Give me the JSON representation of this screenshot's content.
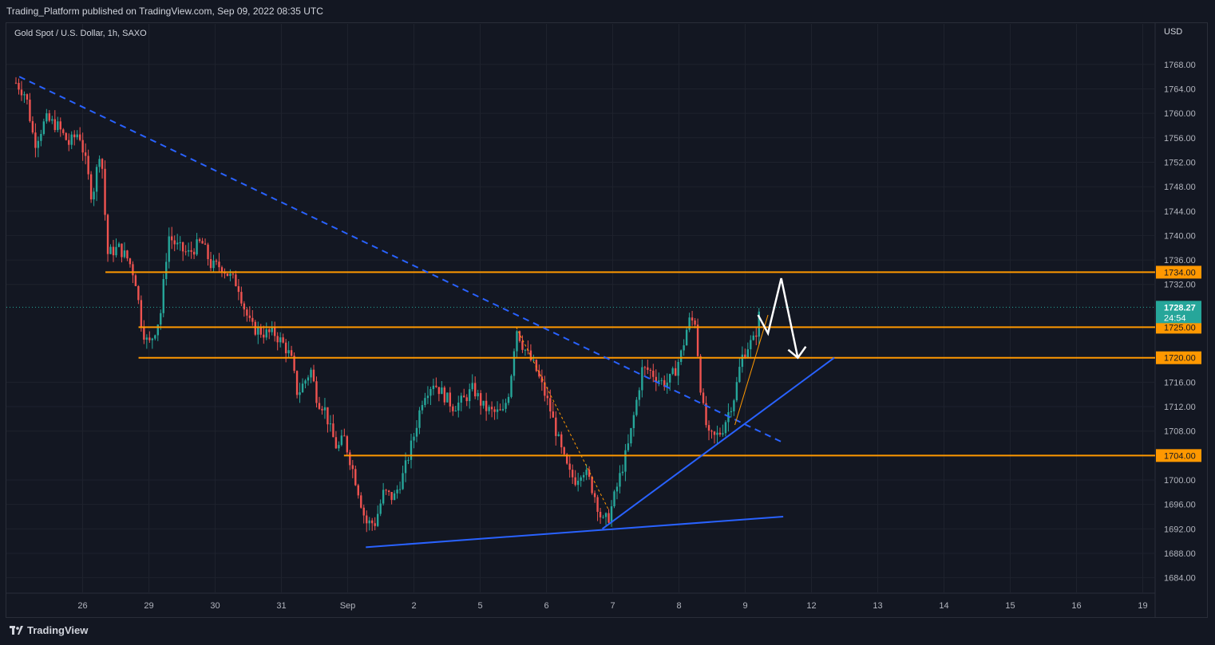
{
  "header": {
    "published_text": "Trading_Platform published on TradingView.com, Sep 09, 2022 08:35 UTC"
  },
  "symbol_title": "Gold Spot / U.S. Dollar, 1h, SAXO",
  "currency": "USD",
  "footer": {
    "brand": "TradingView"
  },
  "colors": {
    "background": "#131722",
    "up": "#26a69a",
    "down": "#ef5350",
    "level": "#ff9800",
    "trend": "#2962ff",
    "price_tag": "#26a69a"
  },
  "chart_data": {
    "type": "candlestick",
    "instrument": "Gold Spot / U.S. Dollar",
    "interval": "1h",
    "y_axis": {
      "min": 1681,
      "max": 1773,
      "ticks": [
        "1768.00",
        "1764.00",
        "1760.00",
        "1756.00",
        "1752.00",
        "1748.00",
        "1744.00",
        "1740.00",
        "1736.00",
        "1732.00",
        "1716.00",
        "1712.00",
        "1708.00",
        "1700.00",
        "1696.00",
        "1692.00",
        "1688.00",
        "1684.00"
      ]
    },
    "x_axis": {
      "labels": [
        {
          "label": "26",
          "t": 0.5
        },
        {
          "label": "29",
          "t": 1.5
        },
        {
          "label": "30",
          "t": 2.5
        },
        {
          "label": "31",
          "t": 3.5
        },
        {
          "label": "Sep",
          "t": 4.5
        },
        {
          "label": "2",
          "t": 5.5
        },
        {
          "label": "5",
          "t": 6.5
        },
        {
          "label": "6",
          "t": 7.5
        },
        {
          "label": "7",
          "t": 8.5
        },
        {
          "label": "8",
          "t": 9.5
        },
        {
          "label": "9",
          "t": 10.5
        },
        {
          "label": "12",
          "t": 11.5
        },
        {
          "label": "13",
          "t": 12.5
        },
        {
          "label": "14",
          "t": 13.5
        },
        {
          "label": "15",
          "t": 14.5
        },
        {
          "label": "16",
          "t": 15.5
        },
        {
          "label": "19",
          "t": 16.5
        }
      ]
    },
    "price_path": [
      [
        0.0,
        1765
      ],
      [
        0.15,
        1763
      ],
      [
        0.28,
        1755
      ],
      [
        0.45,
        1759
      ],
      [
        0.62,
        1758
      ],
      [
        0.8,
        1755
      ],
      [
        0.95,
        1757
      ],
      [
        1.05,
        1752
      ],
      [
        1.15,
        1746
      ],
      [
        1.28,
        1755
      ],
      [
        1.38,
        1737
      ],
      [
        1.55,
        1738
      ],
      [
        1.7,
        1736
      ],
      [
        1.8,
        1733
      ],
      [
        1.9,
        1725
      ],
      [
        2.0,
        1722
      ],
      [
        2.08,
        1724
      ],
      [
        2.18,
        1727
      ],
      [
        2.3,
        1740
      ],
      [
        2.45,
        1738
      ],
      [
        2.6,
        1737
      ],
      [
        2.8,
        1739
      ],
      [
        2.95,
        1735
      ],
      [
        3.1,
        1735
      ],
      [
        3.25,
        1733
      ],
      [
        3.35,
        1732
      ],
      [
        3.45,
        1728
      ],
      [
        3.55,
        1725
      ],
      [
        3.75,
        1724
      ],
      [
        3.9,
        1724
      ],
      [
        4.05,
        1722
      ],
      [
        4.15,
        1720
      ],
      [
        4.25,
        1714
      ],
      [
        4.35,
        1716
      ],
      [
        4.45,
        1718
      ],
      [
        4.55,
        1713
      ],
      [
        4.65,
        1712
      ],
      [
        4.75,
        1708
      ],
      [
        4.85,
        1705
      ],
      [
        4.95,
        1707
      ],
      [
        5.05,
        1703
      ],
      [
        5.15,
        1699
      ],
      [
        5.28,
        1693
      ],
      [
        5.42,
        1693
      ],
      [
        5.55,
        1698
      ],
      [
        5.7,
        1697
      ],
      [
        5.85,
        1701
      ],
      [
        6.0,
        1707
      ],
      [
        6.15,
        1714
      ],
      [
        6.3,
        1716
      ],
      [
        6.45,
        1714
      ],
      [
        6.6,
        1712
      ],
      [
        6.75,
        1713
      ],
      [
        6.9,
        1715
      ],
      [
        7.05,
        1712
      ],
      [
        7.2,
        1711
      ],
      [
        7.35,
        1711
      ],
      [
        7.45,
        1715
      ],
      [
        7.55,
        1725
      ],
      [
        7.65,
        1722
      ],
      [
        7.75,
        1720
      ],
      [
        7.85,
        1718
      ],
      [
        7.95,
        1715
      ],
      [
        8.05,
        1712
      ],
      [
        8.15,
        1708
      ],
      [
        8.25,
        1704
      ],
      [
        8.35,
        1701
      ],
      [
        8.45,
        1700
      ],
      [
        8.55,
        1702
      ],
      [
        8.65,
        1700
      ],
      [
        8.75,
        1697
      ],
      [
        8.85,
        1693
      ],
      [
        8.95,
        1694
      ],
      [
        9.05,
        1698
      ],
      [
        9.15,
        1702
      ],
      [
        9.25,
        1706
      ],
      [
        9.35,
        1712
      ],
      [
        9.45,
        1718
      ],
      [
        9.55,
        1718
      ],
      [
        9.65,
        1717
      ],
      [
        9.75,
        1716
      ],
      [
        9.85,
        1716
      ],
      [
        9.95,
        1718
      ],
      [
        10.05,
        1721
      ],
      [
        10.15,
        1726
      ],
      [
        10.25,
        1726
      ],
      [
        10.35,
        1713
      ],
      [
        10.45,
        1707
      ],
      [
        10.55,
        1707
      ],
      [
        10.65,
        1708
      ],
      [
        10.75,
        1711
      ],
      [
        10.85,
        1714
      ],
      [
        10.95,
        1720
      ],
      [
        11.05,
        1722
      ],
      [
        11.15,
        1723
      ],
      [
        11.25,
        1729
      ]
    ],
    "last_price": 1728.27,
    "last_price_label": "1728.27",
    "countdown": "24:54",
    "horizontal_levels": [
      {
        "price": 1734,
        "label": "1734.00",
        "t_start": 1.35
      },
      {
        "price": 1725,
        "label": "1725.00",
        "t_start": 1.85
      },
      {
        "price": 1720,
        "label": "1720.00",
        "t_start": 1.85
      },
      {
        "price": 1704,
        "label": "1704.00",
        "t_start": 4.95
      }
    ],
    "trendlines": [
      {
        "color": "#2962ff",
        "style": "dashed",
        "points": [
          [
            0.05,
            1766
          ],
          [
            11.6,
            1706
          ]
        ]
      },
      {
        "color": "#2962ff",
        "style": "solid",
        "points": [
          [
            5.28,
            1689
          ],
          [
            11.58,
            1694
          ]
        ]
      },
      {
        "color": "#2962ff",
        "style": "solid",
        "points": [
          [
            8.85,
            1692
          ],
          [
            12.35,
            1720
          ]
        ]
      },
      {
        "color": "#ff9800",
        "style": "dashed",
        "points": [
          [
            7.55,
            1725
          ],
          [
            8.95,
            1695
          ]
        ]
      },
      {
        "color": "#ff9800",
        "style": "solid",
        "points": [
          [
            10.85,
            1709
          ],
          [
            11.35,
            1727
          ]
        ]
      }
    ],
    "projection_arrow": {
      "color": "#ffffff",
      "points": [
        [
          11.2,
          1727
        ],
        [
          11.35,
          1724
        ],
        [
          11.55,
          1733
        ],
        [
          11.8,
          1720
        ]
      ]
    }
  }
}
